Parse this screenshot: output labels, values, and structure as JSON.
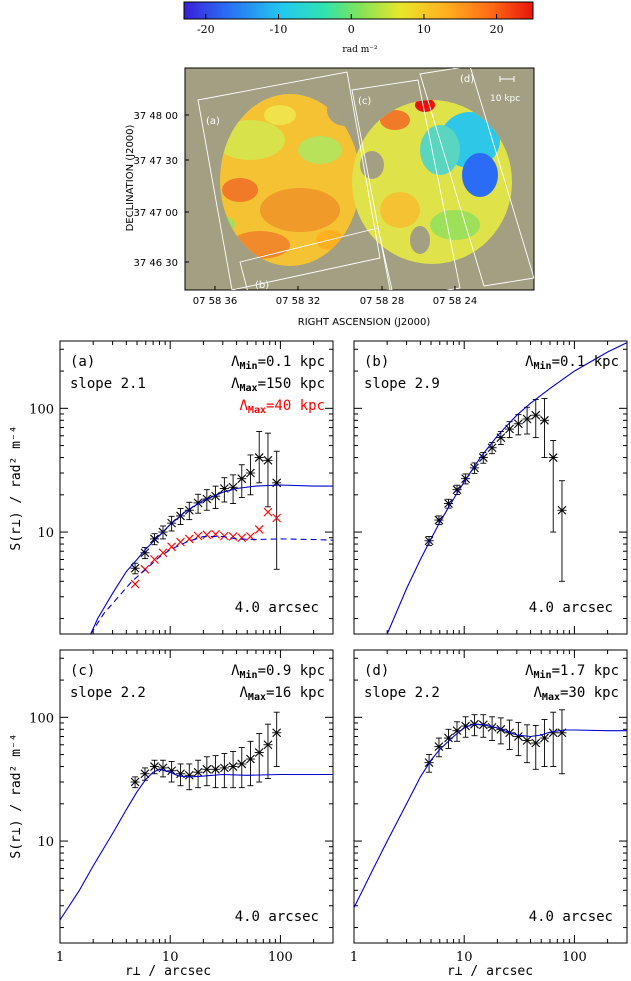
{
  "colorbar": {
    "ticks": [
      "-20",
      "-10",
      "0",
      "10",
      "20"
    ],
    "tick_values": [
      -20,
      -10,
      0,
      10,
      20
    ],
    "range": [
      -23,
      25
    ],
    "unit": "rad m⁻²"
  },
  "map": {
    "ylabel": "DECLINATION (J2000)",
    "xlabel": "RIGHT ASCENSION (J2000)",
    "yticks": [
      "37 48 00",
      "37 47 30",
      "37 47 00",
      "37 46 30"
    ],
    "xticks": [
      "07 58 36",
      "07 58 32",
      "07 58 28",
      "07 58 24"
    ],
    "region_labels": [
      "(a)",
      "(b)",
      "(c)",
      "(d)"
    ],
    "scale_bar_label": "10 kpc"
  },
  "axes_text": {
    "ylabel": "S(r⊥) / rad² m⁻⁴",
    "xlabel": "r⊥ / arcsec",
    "xticks": [
      "1",
      "10",
      "100"
    ],
    "yticks": [
      "10",
      "100"
    ]
  },
  "chart_data": [
    {
      "type": "scatter",
      "panel": "(a)",
      "slope_label": "slope 2.1",
      "lambda_min_label": "ΛMin=0.1 kpc",
      "lambda_max_label": "ΛMax=150 kpc",
      "lambda_max2_label": "ΛMax=40 kpc",
      "resolution_label": "4.0 arcsec",
      "xscale": "log",
      "yscale": "log",
      "xlim": [
        1,
        300
      ],
      "ylim": [
        1.5,
        350
      ],
      "series": [
        {
          "color": "#000000",
          "marker": "x",
          "x": [
            4.8,
            5.9,
            7.2,
            8.6,
            10.3,
            12.4,
            14.9,
            17.9,
            21.5,
            25.8,
            31.0,
            37.2,
            44.6,
            53.5,
            64.2,
            77.1,
            92.5
          ],
          "y": [
            5.1,
            6.8,
            8.8,
            10.0,
            11.8,
            13.5,
            15.0,
            17.2,
            18.5,
            19.5,
            22.5,
            23.0,
            27.0,
            30.0,
            40.0,
            38.0,
            25.0
          ],
          "yerr_lo": [
            0.5,
            0.7,
            0.9,
            1.2,
            1.6,
            2.0,
            2.4,
            3.0,
            3.5,
            4.0,
            5.0,
            6.0,
            8.0,
            10.0,
            15.0,
            22.0,
            20.0
          ],
          "yerr_hi": [
            0.5,
            0.7,
            0.9,
            1.2,
            1.6,
            2.0,
            2.4,
            3.0,
            3.5,
            4.0,
            5.0,
            6.0,
            8.0,
            12.0,
            25.0,
            25.0,
            20.0
          ]
        },
        {
          "color": "#ff0000",
          "marker": "x",
          "x": [
            4.8,
            5.9,
            7.2,
            8.6,
            10.3,
            12.4,
            14.9,
            17.9,
            21.5,
            25.8,
            31.0,
            37.2,
            44.6,
            53.5,
            64.2,
            77.1,
            92.5
          ],
          "y": [
            3.8,
            5.0,
            6.0,
            6.8,
            7.6,
            8.3,
            8.8,
            9.3,
            9.5,
            9.6,
            9.3,
            9.2,
            9.0,
            9.2,
            10.5,
            14.5,
            13.0
          ]
        },
        {
          "color": "#0000cc",
          "style": "solid",
          "x": [
            1.9,
            2.2,
            3,
            4,
            5,
            6,
            8,
            10,
            14,
            20,
            30,
            40,
            60,
            100,
            200,
            300
          ],
          "y": [
            1.5,
            2.0,
            3.2,
            4.8,
            6.0,
            7.3,
            9.4,
            11.5,
            14.8,
            18.0,
            21.0,
            22.5,
            23.5,
            24.0,
            23.5,
            23.5
          ]
        },
        {
          "color": "#0000cc",
          "style": "dashed",
          "x": [
            1.9,
            2.5,
            3.5,
            4.5,
            6,
            8,
            10,
            14,
            20,
            30,
            40,
            60,
            100,
            200,
            300
          ],
          "y": [
            1.5,
            2.2,
            3.1,
            4.0,
            5.0,
            6.3,
            7.2,
            8.3,
            9.2,
            9.2,
            8.8,
            8.7,
            8.8,
            8.7,
            8.6
          ]
        }
      ]
    },
    {
      "type": "scatter",
      "panel": "(b)",
      "slope_label": "slope 2.9",
      "lambda_min_label": "ΛMin=0.1 kpc",
      "resolution_label": "4.0 arcsec",
      "xscale": "log",
      "yscale": "log",
      "xlim": [
        1,
        300
      ],
      "ylim": [
        1.5,
        350
      ],
      "series": [
        {
          "color": "#000000",
          "marker": "x",
          "x": [
            4.8,
            5.9,
            7.2,
            8.6,
            10.3,
            12.4,
            14.9,
            17.9,
            21.5,
            25.8,
            31.0,
            37.2,
            44.6,
            53.5,
            64.2,
            77.1
          ],
          "y": [
            8.5,
            12.5,
            17.0,
            22.0,
            27.0,
            33.0,
            40.0,
            48.0,
            58.0,
            68.0,
            75.0,
            82.0,
            88.0,
            80.0,
            40.0,
            15.0
          ],
          "yerr_lo": [
            0.7,
            1.0,
            1.4,
            1.9,
            2.5,
            3.2,
            4.0,
            5.0,
            7.0,
            10.0,
            14.0,
            20.0,
            30.0,
            40.0,
            30.0,
            11.0
          ],
          "yerr_hi": [
            0.7,
            1.0,
            1.4,
            1.9,
            2.5,
            3.2,
            4.0,
            5.0,
            7.0,
            10.0,
            14.0,
            20.0,
            30.0,
            40.0,
            15.0,
            11.0
          ]
        },
        {
          "color": "#0000cc",
          "style": "solid",
          "x": [
            2.0,
            3,
            4,
            5,
            6,
            8,
            10,
            14,
            20,
            30,
            40,
            60,
            100,
            200,
            300
          ],
          "y": [
            1.5,
            3.5,
            6.0,
            8.8,
            12.0,
            18.5,
            25.5,
            40.0,
            60.0,
            88.0,
            110.0,
            145.0,
            200.0,
            285.0,
            340.0
          ]
        }
      ]
    },
    {
      "type": "scatter",
      "panel": "(c)",
      "slope_label": "slope 2.2",
      "lambda_min_label": "ΛMin=0.9 kpc",
      "lambda_max_label": "ΛMax=16 kpc",
      "resolution_label": "4.0 arcsec",
      "xscale": "log",
      "yscale": "log",
      "xlim": [
        1,
        300
      ],
      "ylim": [
        1.5,
        350
      ],
      "series": [
        {
          "color": "#000000",
          "marker": "x",
          "x": [
            4.8,
            5.9,
            7.2,
            8.6,
            10.3,
            12.4,
            14.9,
            17.9,
            21.5,
            25.8,
            31.0,
            37.2,
            44.6,
            53.5,
            64.2,
            77.1,
            92.5
          ],
          "y": [
            30.0,
            35.0,
            40.0,
            39.0,
            37.0,
            35.0,
            34.0,
            36.0,
            38.0,
            38.0,
            39.0,
            40.0,
            42.0,
            46.0,
            52.0,
            60.0,
            75.0
          ],
          "yerr_lo": [
            3,
            4,
            5,
            6,
            7,
            7,
            8,
            9,
            10,
            11,
            12,
            13,
            15,
            18,
            22,
            28,
            35
          ],
          "yerr_hi": [
            3,
            4,
            5,
            6,
            7,
            7,
            8,
            9,
            10,
            11,
            12,
            13,
            15,
            18,
            22,
            28,
            35
          ]
        },
        {
          "color": "#0000cc",
          "style": "solid",
          "x": [
            1,
            1.5,
            2,
            3,
            4,
            5,
            6,
            7,
            8,
            10,
            12,
            15,
            20,
            30,
            50,
            100,
            200,
            300
          ],
          "y": [
            2.3,
            4.0,
            6.3,
            11.5,
            18.0,
            25.0,
            31.5,
            36.0,
            38.0,
            36.0,
            33.5,
            33.0,
            33.5,
            34.5,
            34.0,
            34.5,
            34.5,
            34.5
          ]
        }
      ]
    },
    {
      "type": "scatter",
      "panel": "(d)",
      "slope_label": "slope 2.2",
      "lambda_min_label": "ΛMin=1.7 kpc",
      "lambda_max_label": "ΛMax=30 kpc",
      "resolution_label": "4.0 arcsec",
      "xscale": "log",
      "yscale": "log",
      "xlim": [
        1,
        300
      ],
      "ylim": [
        1.5,
        350
      ],
      "series": [
        {
          "color": "#000000",
          "marker": "x",
          "x": [
            4.8,
            5.9,
            7.2,
            8.6,
            10.3,
            12.4,
            14.9,
            17.9,
            21.5,
            25.8,
            31.0,
            37.2,
            44.6,
            53.5,
            64.2,
            77.1
          ],
          "y": [
            43,
            58,
            68,
            78,
            85,
            88,
            87,
            83,
            80,
            75,
            70,
            65,
            62,
            68,
            75,
            75
          ],
          "yerr_lo": [
            7,
            10,
            12,
            14,
            16,
            17,
            18,
            18,
            19,
            20,
            21,
            22,
            24,
            28,
            35,
            40
          ],
          "yerr_hi": [
            7,
            10,
            12,
            14,
            16,
            17,
            18,
            18,
            19,
            20,
            21,
            22,
            24,
            28,
            35,
            40
          ]
        },
        {
          "color": "#0000cc",
          "style": "solid",
          "x": [
            1,
            1.5,
            2,
            3,
            4,
            5,
            6,
            8,
            10,
            12,
            15,
            20,
            25,
            30,
            40,
            50,
            60,
            80,
            100,
            200,
            300
          ],
          "y": [
            2.9,
            6.0,
            10.0,
            20.0,
            33.0,
            45.0,
            55.0,
            70.0,
            82.0,
            88.0,
            87.0,
            82.0,
            76.0,
            72.0,
            70.0,
            72.0,
            76.0,
            79.0,
            79.0,
            78.0,
            78.0
          ]
        }
      ]
    }
  ]
}
